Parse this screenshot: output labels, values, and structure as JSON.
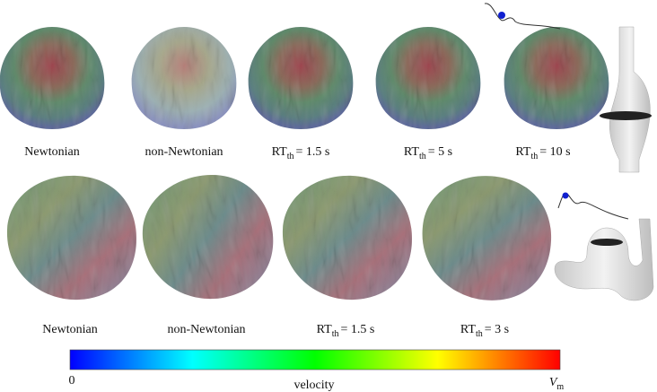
{
  "top_row": {
    "labels": [
      {
        "text": "Newtonian"
      },
      {
        "text": "non-Newtonian"
      },
      {
        "rt": "RT",
        "sub": "th",
        "value": "= 1.5 s"
      },
      {
        "rt": "RT",
        "sub": "th",
        "value": "= 5 s"
      },
      {
        "rt": "RT",
        "sub": "th",
        "value": "= 10 s"
      }
    ]
  },
  "bottom_row": {
    "labels": [
      {
        "text": "Newtonian"
      },
      {
        "text": "non-Newtonian"
      },
      {
        "rt": "RT",
        "sub": "th",
        "value": "= 1.5 s"
      },
      {
        "rt": "RT",
        "sub": "th",
        "value": "= 3 s"
      }
    ]
  },
  "colorbar": {
    "min_label": "0",
    "title": "velocity",
    "max_label": "V",
    "max_sub": "m"
  }
}
